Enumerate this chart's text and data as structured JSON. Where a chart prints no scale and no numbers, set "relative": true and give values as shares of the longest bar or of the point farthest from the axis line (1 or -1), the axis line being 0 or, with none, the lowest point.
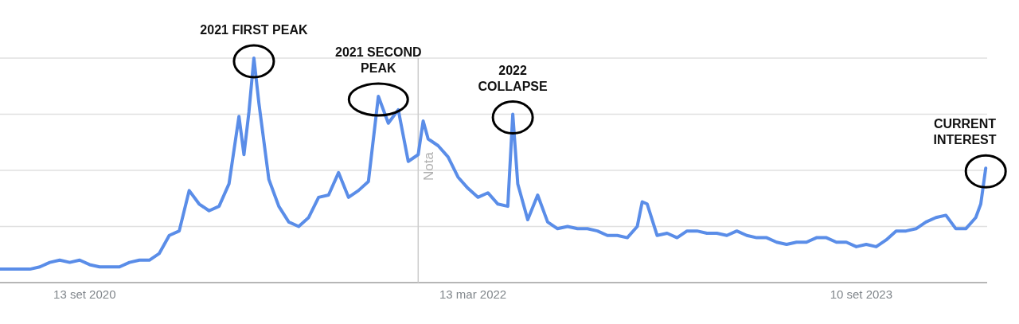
{
  "chart_data": {
    "type": "line",
    "relative": true,
    "grid": true,
    "line_style": "solid",
    "x": [
      "2020-05-17",
      "2020-05-31",
      "2020-06-14",
      "2020-06-28",
      "2020-07-12",
      "2020-07-26",
      "2020-08-09",
      "2020-08-23",
      "2020-09-06",
      "2020-09-20",
      "2020-10-04",
      "2020-10-18",
      "2020-11-01",
      "2020-11-15",
      "2020-11-29",
      "2020-12-13",
      "2020-12-27",
      "2021-01-10",
      "2021-01-24",
      "2021-02-07",
      "2021-02-21",
      "2021-03-07",
      "2021-03-21",
      "2021-04-04",
      "2021-04-18",
      "2021-04-25",
      "2021-05-02",
      "2021-05-09",
      "2021-05-16",
      "2021-05-30",
      "2021-06-13",
      "2021-06-27",
      "2021-07-11",
      "2021-07-25",
      "2021-08-08",
      "2021-08-22",
      "2021-09-05",
      "2021-09-19",
      "2021-10-03",
      "2021-10-17",
      "2021-10-31",
      "2021-11-14",
      "2021-11-28",
      "2021-12-12",
      "2021-12-26",
      "2022-01-02",
      "2022-01-09",
      "2022-01-23",
      "2022-02-06",
      "2022-02-20",
      "2022-03-06",
      "2022-03-20",
      "2022-04-03",
      "2022-04-17",
      "2022-05-01",
      "2022-05-08",
      "2022-05-15",
      "2022-05-29",
      "2022-06-12",
      "2022-06-26",
      "2022-07-10",
      "2022-07-24",
      "2022-08-07",
      "2022-08-21",
      "2022-09-04",
      "2022-09-18",
      "2022-10-02",
      "2022-10-16",
      "2022-10-30",
      "2022-11-06",
      "2022-11-13",
      "2022-11-27",
      "2022-12-11",
      "2022-12-25",
      "2023-01-08",
      "2023-01-22",
      "2023-02-05",
      "2023-02-19",
      "2023-03-05",
      "2023-03-19",
      "2023-04-02",
      "2023-04-16",
      "2023-04-30",
      "2023-05-14",
      "2023-05-28",
      "2023-06-11",
      "2023-06-25",
      "2023-07-09",
      "2023-07-23",
      "2023-08-06",
      "2023-08-20",
      "2023-09-03",
      "2023-09-17",
      "2023-10-01",
      "2023-10-15",
      "2023-10-29",
      "2023-11-12",
      "2023-11-26",
      "2023-12-10",
      "2023-12-24",
      "2024-01-07",
      "2024-01-21",
      "2024-02-04",
      "2024-02-18",
      "2024-02-25",
      "2024-03-03"
    ],
    "series": [
      {
        "color": "#5a8de8",
        "values": [
          0.06,
          0.06,
          0.06,
          0.06,
          0.07,
          0.09,
          0.1,
          0.09,
          0.1,
          0.08,
          0.07,
          0.07,
          0.07,
          0.09,
          0.1,
          0.1,
          0.13,
          0.21,
          0.23,
          0.41,
          0.35,
          0.32,
          0.34,
          0.44,
          0.74,
          0.57,
          0.76,
          1.0,
          0.8,
          0.46,
          0.34,
          0.27,
          0.25,
          0.29,
          0.38,
          0.39,
          0.49,
          0.38,
          0.41,
          0.45,
          0.83,
          0.71,
          0.77,
          0.54,
          0.57,
          0.72,
          0.64,
          0.61,
          0.56,
          0.47,
          0.42,
          0.38,
          0.4,
          0.35,
          0.34,
          0.75,
          0.44,
          0.28,
          0.39,
          0.27,
          0.24,
          0.25,
          0.24,
          0.24,
          0.23,
          0.21,
          0.21,
          0.2,
          0.25,
          0.36,
          0.35,
          0.21,
          0.22,
          0.2,
          0.23,
          0.23,
          0.22,
          0.22,
          0.21,
          0.23,
          0.21,
          0.2,
          0.2,
          0.18,
          0.17,
          0.18,
          0.18,
          0.2,
          0.2,
          0.18,
          0.18,
          0.16,
          0.17,
          0.16,
          0.19,
          0.23,
          0.23,
          0.24,
          0.27,
          0.29,
          0.3,
          0.24,
          0.24,
          0.29,
          0.35,
          0.51
        ]
      }
    ],
    "xlim": [
      "2020-05-17",
      "2024-03-05"
    ],
    "xticks": [
      {
        "value": "2020-09-13",
        "label": "13 set 2020"
      },
      {
        "value": "2022-03-13",
        "label": "13 mar 2022"
      },
      {
        "value": "2023-09-10",
        "label": "10 set 2023"
      }
    ],
    "ref_lines": [
      {
        "axis": "x",
        "value": "2021-12-26",
        "label": "Nota",
        "color": "#cccccc"
      }
    ],
    "annotations": [
      {
        "text": "2021 FIRST PEAK",
        "x": "2021-05-09",
        "y": 1.0
      },
      {
        "text": "2021 SECOND\nPEAK",
        "x": "2021-10-31",
        "y": 0.83
      },
      {
        "text": "2022\nCOLLAPSE",
        "x": "2022-05-08",
        "y": 0.75
      },
      {
        "text": "CURRENT\nINTEREST",
        "x": "2024-03-03",
        "y": 0.51
      }
    ]
  }
}
